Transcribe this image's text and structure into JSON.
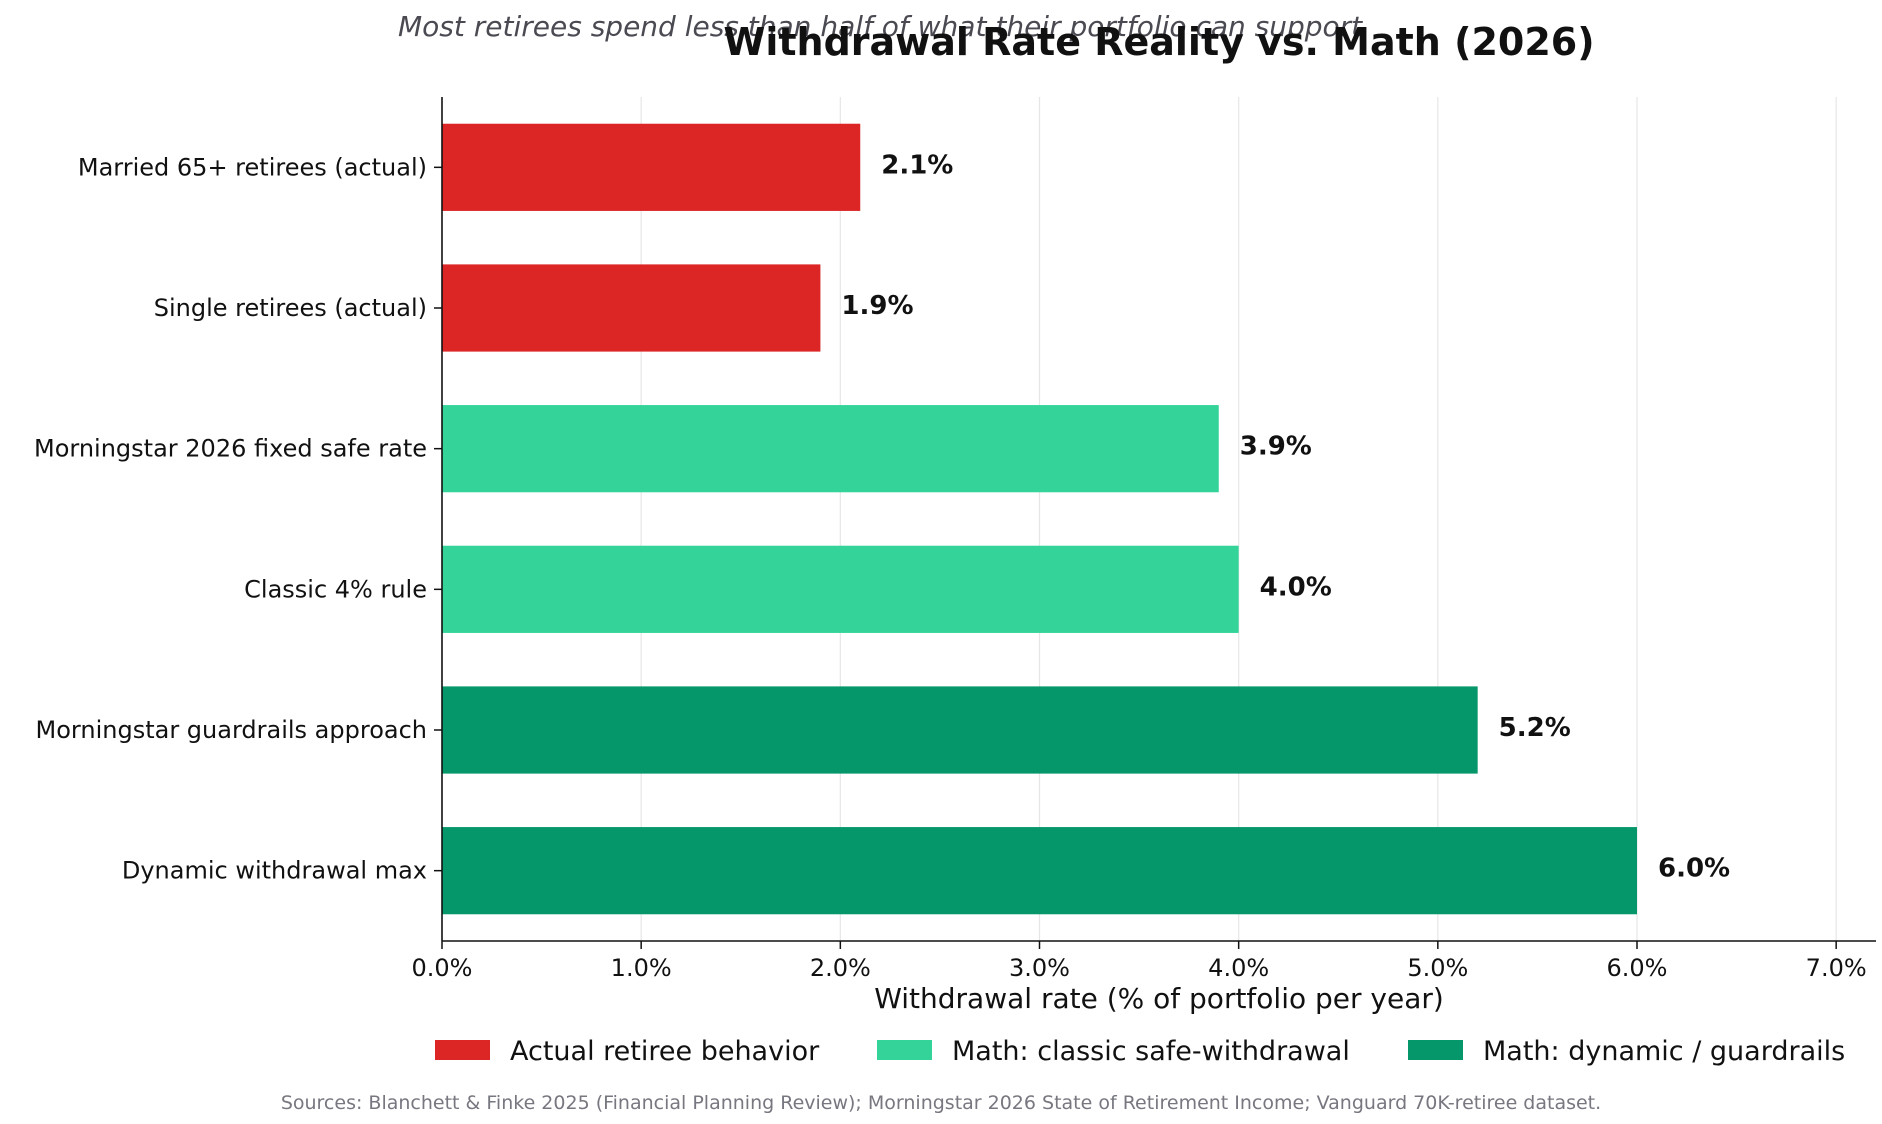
{
  "chart_data": {
    "type": "bar",
    "orientation": "horizontal",
    "title": "Withdrawal Rate Reality vs. Math (2026)",
    "subtitle": "Most retirees spend less than half of what their portfolio can support",
    "xlabel": "Withdrawal rate (% of portfolio per year)",
    "ylabel": "",
    "xlim": [
      0,
      7.2
    ],
    "xticks": [
      0,
      1,
      2,
      3,
      4,
      5,
      6,
      7
    ],
    "xtick_labels": [
      "0.0%",
      "1.0%",
      "2.0%",
      "3.0%",
      "4.0%",
      "5.0%",
      "6.0%",
      "7.0%"
    ],
    "grid": "vertical",
    "legend_placement": "bottom",
    "categories": [
      "Married 65+ retirees (actual)",
      "Single retirees (actual)",
      "Morningstar 2026 fixed safe rate",
      "Classic 4% rule",
      "Morningstar guardrails approach",
      "Dynamic withdrawal max"
    ],
    "values": [
      2.1,
      1.9,
      3.9,
      4.0,
      5.2,
      6.0
    ],
    "value_labels": [
      "2.1%",
      "1.9%",
      "3.9%",
      "4.0%",
      "5.2%",
      "6.0%"
    ],
    "groups": [
      0,
      0,
      1,
      1,
      2,
      2
    ],
    "legend": [
      {
        "label": "Actual retiree behavior",
        "color": "#dc2626"
      },
      {
        "label": "Math: classic safe-withdrawal",
        "color": "#34d399"
      },
      {
        "label": "Math: dynamic / guardrails",
        "color": "#059669"
      }
    ],
    "source_note": "Sources: Blanchett & Finke 2025 (Financial Planning Review); Morningstar 2026 State of Retirement Income; Vanguard 70K-retiree dataset."
  }
}
